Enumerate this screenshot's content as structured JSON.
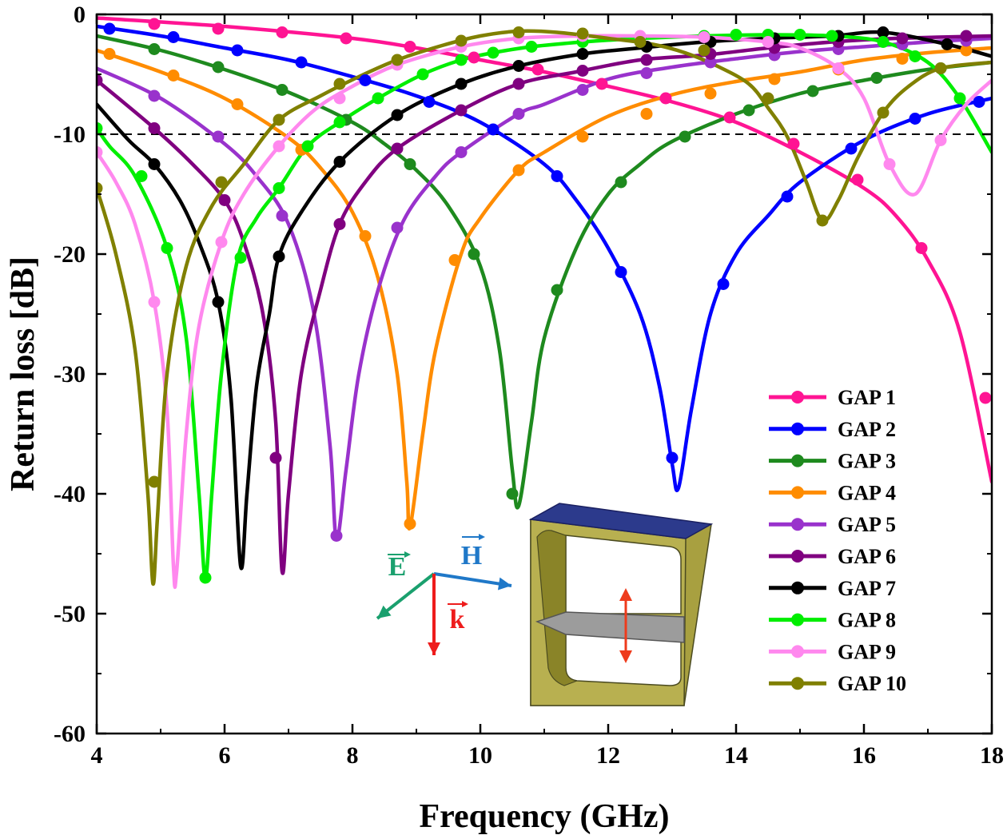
{
  "chart_data": {
    "type": "line",
    "title": "",
    "xlabel": "Frequency (GHz)",
    "ylabel": "Return loss [dB]",
    "xlim": [
      4,
      18
    ],
    "ylim": [
      -60,
      0
    ],
    "x_ticks": [
      "4",
      "6",
      "8",
      "10",
      "12",
      "14",
      "16",
      "18"
    ],
    "y_ticks": [
      "0",
      "-10",
      "-20",
      "-30",
      "-40",
      "-50",
      "-60"
    ],
    "reference_line": {
      "y": -10,
      "style": "dashed"
    },
    "legend_position": "bottom-right",
    "series": [
      {
        "name": "GAP 1",
        "color": "#ff1493",
        "x": [
          4,
          6,
          8,
          9,
          10,
          11,
          12,
          13,
          14,
          15,
          16,
          16.5,
          17,
          17.5,
          18
        ],
        "y": [
          -0.3,
          -1.0,
          -2.0,
          -2.8,
          -3.8,
          -4.8,
          -6.0,
          -7.3,
          -9.0,
          -11.5,
          -14.5,
          -16.8,
          -20.5,
          -26.5,
          -39
        ]
      },
      {
        "name": "GAP 2",
        "color": "#0000ff",
        "x": [
          4,
          5,
          6,
          7,
          8,
          9,
          10,
          11,
          11.5,
          12,
          12.5,
          12.8,
          13.0,
          13.1,
          13.3,
          13.6,
          14,
          14.5,
          15,
          16,
          17,
          18
        ],
        "y": [
          -1.0,
          -1.8,
          -2.8,
          -3.8,
          -5.2,
          -6.8,
          -9.0,
          -12.5,
          -15.5,
          -19.5,
          -25.0,
          -31.0,
          -37.5,
          -39.5,
          -33.0,
          -25.0,
          -20.0,
          -16.8,
          -14.0,
          -10.5,
          -8.3,
          -7.0
        ]
      },
      {
        "name": "GAP 3",
        "color": "#1e8a1e",
        "x": [
          4,
          5,
          6,
          7,
          8,
          8.5,
          9,
          9.5,
          10,
          10.3,
          10.5,
          10.6,
          10.8,
          11,
          11.5,
          12,
          12.5,
          13,
          14,
          15,
          16,
          17,
          18
        ],
        "y": [
          -1.8,
          -3.0,
          -4.6,
          -6.5,
          -9.0,
          -10.8,
          -13.0,
          -16.0,
          -21.0,
          -28.0,
          -38.0,
          -41.0,
          -34.0,
          -27.0,
          -19.5,
          -15.0,
          -12.5,
          -10.6,
          -8.3,
          -6.6,
          -5.5,
          -4.6,
          -4.0
        ]
      },
      {
        "name": "GAP 4",
        "color": "#ff8c00",
        "x": [
          4,
          5,
          6,
          7,
          7.5,
          8,
          8.4,
          8.7,
          8.85,
          8.9,
          9.1,
          9.3,
          9.7,
          10,
          10.6,
          11,
          12,
          13,
          14,
          15,
          16,
          17,
          18
        ],
        "y": [
          -3.0,
          -4.8,
          -7.0,
          -10.3,
          -12.8,
          -16.5,
          -22.0,
          -30.0,
          -39.0,
          -42.8,
          -35.0,
          -28.0,
          -20.0,
          -17.0,
          -13.0,
          -11.5,
          -8.5,
          -6.7,
          -5.6,
          -4.8,
          -3.8,
          -3.2,
          -2.8
        ]
      },
      {
        "name": "GAP 5",
        "color": "#9932cc",
        "x": [
          4,
          5,
          6,
          6.5,
          7,
          7.4,
          7.65,
          7.75,
          7.9,
          8.1,
          8.4,
          8.8,
          9.3,
          9.7,
          10.6,
          11,
          12,
          13,
          14,
          15,
          16,
          17,
          18
        ],
        "y": [
          -4.5,
          -7.0,
          -10.8,
          -13.5,
          -17.5,
          -25.0,
          -36.0,
          -43.8,
          -38.0,
          -30.0,
          -23.0,
          -17.2,
          -13.5,
          -11.5,
          -8.3,
          -7.5,
          -5.4,
          -4.4,
          -3.7,
          -3.1,
          -2.7,
          -2.3,
          -2.0
        ]
      },
      {
        "name": "GAP 6",
        "color": "#800080",
        "x": [
          4,
          4.9,
          5.5,
          6,
          6.3,
          6.6,
          6.8,
          6.9,
          7.0,
          7.2,
          7.5,
          7.8,
          8.2,
          8.7,
          9.7,
          10.6,
          11.5,
          12.5,
          13.5,
          14.5,
          15.5,
          16.5,
          18
        ],
        "y": [
          -5.5,
          -9.5,
          -12.5,
          -15.5,
          -19.0,
          -25.0,
          -34.0,
          -46.5,
          -40.0,
          -30.0,
          -23.0,
          -17.5,
          -14.0,
          -11.2,
          -8.0,
          -5.8,
          -4.8,
          -3.8,
          -3.4,
          -2.8,
          -2.3,
          -2.0,
          -1.8
        ]
      },
      {
        "name": "GAP 7",
        "color": "#000000",
        "x": [
          4,
          4.5,
          4.9,
          5.3,
          5.6,
          5.9,
          6.1,
          6.25,
          6.35,
          6.5,
          6.7,
          6.85,
          7.2,
          7.8,
          8.7,
          9.7,
          10.6,
          11.6,
          12.5,
          13.5,
          14.5,
          15.5,
          16.3,
          17.3,
          18
        ],
        "y": [
          -7.5,
          -10.5,
          -12.5,
          -15.5,
          -19.0,
          -24.0,
          -32.0,
          -46.0,
          -40.0,
          -31.0,
          -25.0,
          -20.2,
          -16.5,
          -12.3,
          -8.4,
          -5.8,
          -4.3,
          -3.3,
          -2.8,
          -2.3,
          -2.0,
          -1.8,
          -1.5,
          -2.5,
          -3.5
        ]
      },
      {
        "name": "GAP 8",
        "color": "#00ee00",
        "x": [
          4,
          4.2,
          4.6,
          5.1,
          5.4,
          5.6,
          5.7,
          5.8,
          5.95,
          6.2,
          6.5,
          6.85,
          7.3,
          7.8,
          8.4,
          9.1,
          9.7,
          10.2,
          10.8,
          11.6,
          12.5,
          13.5,
          14.5,
          15.5,
          16.3,
          17.0,
          17.5,
          18
        ],
        "y": [
          -9.5,
          -11.0,
          -13.5,
          -19.5,
          -27.0,
          -40.0,
          -47.0,
          -40.0,
          -30.0,
          -20.5,
          -17.0,
          -14.5,
          -11.0,
          -9.0,
          -7.0,
          -5.0,
          -3.8,
          -3.2,
          -2.7,
          -2.3,
          -2.0,
          -1.8,
          -1.7,
          -1.8,
          -2.3,
          -4.0,
          -7.0,
          -11.5
        ]
      },
      {
        "name": "GAP 9",
        "color": "#ff88ee",
        "x": [
          4,
          4.3,
          4.6,
          4.9,
          5.1,
          5.2,
          5.25,
          5.4,
          5.6,
          5.95,
          6.3,
          6.85,
          7.4,
          8.0,
          8.7,
          9.7,
          10.6,
          11.6,
          12.5,
          13.5,
          14.5,
          15.0,
          15.6,
          16.0,
          16.4,
          16.8,
          17.2,
          17.6,
          18
        ],
        "y": [
          -11.5,
          -14.0,
          -17.5,
          -24.0,
          -33.0,
          -46.0,
          -46.5,
          -35.0,
          -26.0,
          -19.0,
          -15.0,
          -11.0,
          -8.0,
          -6.0,
          -4.2,
          -2.7,
          -2.0,
          -1.8,
          -1.8,
          -1.9,
          -2.3,
          -2.8,
          -4.5,
          -7.0,
          -12.5,
          -15.0,
          -10.5,
          -7.5,
          -5.5
        ]
      },
      {
        "name": "GAP 10",
        "color": "#808000",
        "x": [
          4,
          4.3,
          4.6,
          4.8,
          4.88,
          4.95,
          5.1,
          5.4,
          5.8,
          6.3,
          6.85,
          7.5,
          8.1,
          8.7,
          9.4,
          10.0,
          10.6,
          11.2,
          12.0,
          12.7,
          13.2,
          13.7,
          14.2,
          14.5,
          14.8,
          15.1,
          15.35,
          15.6,
          15.9,
          16.3,
          16.7,
          17.2,
          18
        ],
        "y": [
          -14.5,
          -20.0,
          -28.0,
          -40.0,
          -47.5,
          -42.0,
          -30.0,
          -21.0,
          -16.0,
          -12.5,
          -8.8,
          -6.8,
          -5.2,
          -3.8,
          -2.6,
          -1.8,
          -1.4,
          -1.5,
          -2.0,
          -2.5,
          -3.2,
          -4.3,
          -5.8,
          -7.8,
          -10.2,
          -14.0,
          -17.2,
          -15.5,
          -12.0,
          -8.2,
          -6.0,
          -4.5,
          -4.0
        ]
      }
    ],
    "markers": [
      [
        [
          4.9,
          -0.8
        ],
        [
          5.9,
          -1.2
        ],
        [
          6.9,
          -1.5
        ],
        [
          7.9,
          -2.0
        ],
        [
          8.9,
          -2.7
        ],
        [
          9.9,
          -3.6
        ],
        [
          10.9,
          -4.6
        ],
        [
          11.9,
          -5.8
        ],
        [
          12.9,
          -7.0
        ],
        [
          13.9,
          -8.6
        ],
        [
          14.9,
          -10.8
        ],
        [
          15.9,
          -13.8
        ],
        [
          16.9,
          -19.5
        ],
        [
          17.9,
          -32.0
        ]
      ],
      [
        [
          4.2,
          -1.2
        ],
        [
          5.2,
          -1.9
        ],
        [
          6.2,
          -3.0
        ],
        [
          7.2,
          -4.0
        ],
        [
          8.2,
          -5.5
        ],
        [
          9.2,
          -7.3
        ],
        [
          10.2,
          -9.6
        ],
        [
          11.2,
          -13.5
        ],
        [
          12.2,
          -21.5
        ],
        [
          13.0,
          -37.0
        ],
        [
          13.8,
          -22.5
        ],
        [
          14.8,
          -15.2
        ],
        [
          15.8,
          -11.2
        ],
        [
          16.8,
          -8.7
        ],
        [
          17.8,
          -7.3
        ]
      ],
      [
        [
          4.9,
          -2.9
        ],
        [
          5.9,
          -4.4
        ],
        [
          6.9,
          -6.3
        ],
        [
          7.9,
          -8.8
        ],
        [
          8.9,
          -12.5
        ],
        [
          9.9,
          -20.0
        ],
        [
          10.5,
          -40.0
        ],
        [
          11.2,
          -23.0
        ],
        [
          12.2,
          -14.0
        ],
        [
          13.2,
          -10.2
        ],
        [
          14.2,
          -8.0
        ],
        [
          15.2,
          -6.4
        ],
        [
          16.2,
          -5.3
        ],
        [
          17.2,
          -4.5
        ]
      ],
      [
        [
          4.2,
          -3.3
        ],
        [
          5.2,
          -5.1
        ],
        [
          6.2,
          -7.5
        ],
        [
          7.2,
          -11.3
        ],
        [
          8.2,
          -18.5
        ],
        [
          8.9,
          -42.5
        ],
        [
          9.6,
          -20.5
        ],
        [
          10.6,
          -13.0
        ],
        [
          11.6,
          -10.2
        ],
        [
          12.6,
          -8.3
        ],
        [
          13.6,
          -6.6
        ],
        [
          14.6,
          -5.4
        ],
        [
          15.6,
          -4.6
        ],
        [
          16.6,
          -3.7
        ],
        [
          17.6,
          -3.0
        ]
      ],
      [
        [
          4.9,
          -6.8
        ],
        [
          5.9,
          -10.2
        ],
        [
          6.9,
          -16.8
        ],
        [
          7.75,
          -43.5
        ],
        [
          8.7,
          -17.8
        ],
        [
          9.7,
          -11.5
        ],
        [
          10.6,
          -8.3
        ],
        [
          11.6,
          -6.3
        ],
        [
          12.6,
          -4.9
        ],
        [
          13.6,
          -4.0
        ],
        [
          14.6,
          -3.4
        ],
        [
          15.6,
          -2.9
        ],
        [
          16.6,
          -2.5
        ],
        [
          17.6,
          -2.2
        ]
      ],
      [
        [
          4.0,
          -5.5
        ],
        [
          4.9,
          -9.5
        ],
        [
          6.0,
          -15.5
        ],
        [
          6.8,
          -37.0
        ],
        [
          7.8,
          -17.5
        ],
        [
          8.7,
          -11.2
        ],
        [
          9.7,
          -8.0
        ],
        [
          10.6,
          -5.8
        ],
        [
          11.6,
          -4.7
        ],
        [
          12.6,
          -3.8
        ],
        [
          13.6,
          -3.3
        ],
        [
          14.6,
          -2.8
        ],
        [
          15.6,
          -2.3
        ],
        [
          16.6,
          -2.0
        ],
        [
          17.6,
          -1.8
        ]
      ],
      [
        [
          4.9,
          -12.5
        ],
        [
          5.9,
          -24.0
        ],
        [
          6.85,
          -20.2
        ],
        [
          7.8,
          -12.3
        ],
        [
          8.7,
          -8.4
        ],
        [
          9.7,
          -5.8
        ],
        [
          10.6,
          -4.3
        ],
        [
          11.6,
          -3.3
        ],
        [
          12.6,
          -2.7
        ],
        [
          13.6,
          -2.3
        ],
        [
          14.6,
          -2.0
        ],
        [
          15.6,
          -1.8
        ],
        [
          16.3,
          -1.5
        ],
        [
          17.3,
          -2.5
        ]
      ],
      [
        [
          4.0,
          -9.5
        ],
        [
          4.7,
          -13.5
        ],
        [
          5.1,
          -19.5
        ],
        [
          5.7,
          -47.0
        ],
        [
          6.25,
          -20.3
        ],
        [
          6.85,
          -14.5
        ],
        [
          7.3,
          -11.0
        ],
        [
          7.8,
          -9.0
        ],
        [
          8.4,
          -7.0
        ],
        [
          9.1,
          -5.0
        ],
        [
          9.7,
          -3.8
        ],
        [
          10.2,
          -3.2
        ],
        [
          10.8,
          -2.7
        ],
        [
          11.6,
          -2.3
        ],
        [
          12.5,
          -2.0
        ],
        [
          13.5,
          -1.8
        ],
        [
          14.0,
          -1.7
        ],
        [
          14.5,
          -1.7
        ],
        [
          15.0,
          -1.7
        ],
        [
          15.5,
          -1.8
        ],
        [
          16.3,
          -2.3
        ],
        [
          16.8,
          -3.5
        ],
        [
          17.5,
          -7.0
        ]
      ],
      [
        [
          4.0,
          -11.5
        ],
        [
          4.9,
          -24.0
        ],
        [
          5.95,
          -19.0
        ],
        [
          6.85,
          -11.0
        ],
        [
          7.8,
          -7.0
        ],
        [
          8.7,
          -4.2
        ],
        [
          9.7,
          -2.7
        ],
        [
          10.6,
          -2.0
        ],
        [
          11.6,
          -1.8
        ],
        [
          12.5,
          -1.8
        ],
        [
          13.5,
          -1.9
        ],
        [
          14.5,
          -2.3
        ],
        [
          15.6,
          -4.5
        ],
        [
          16.4,
          -12.5
        ],
        [
          17.2,
          -10.5
        ]
      ],
      [
        [
          4.0,
          -14.5
        ],
        [
          4.9,
          -39.0
        ],
        [
          5.95,
          -14.0
        ],
        [
          6.85,
          -8.8
        ],
        [
          7.8,
          -5.8
        ],
        [
          8.7,
          -3.8
        ],
        [
          9.7,
          -2.2
        ],
        [
          10.6,
          -1.5
        ],
        [
          11.6,
          -1.6
        ],
        [
          12.5,
          -2.3
        ],
        [
          13.5,
          -3.0
        ],
        [
          14.5,
          -7.0
        ],
        [
          15.35,
          -17.2
        ],
        [
          16.3,
          -8.2
        ],
        [
          17.2,
          -4.5
        ]
      ]
    ],
    "inset": {
      "vectors": [
        {
          "label": "E",
          "color": "#1aa06e"
        },
        {
          "label": "H",
          "color": "#1f78c8"
        },
        {
          "label": "k",
          "color": "#ee1c1c"
        }
      ],
      "frame_color": "#a8a040",
      "top_color": "#2c3a8c"
    }
  }
}
